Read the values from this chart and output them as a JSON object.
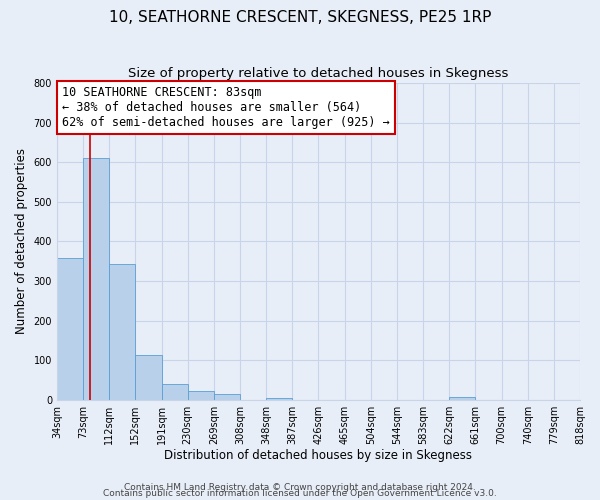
{
  "title": "10, SEATHORNE CRESCENT, SKEGNESS, PE25 1RP",
  "subtitle": "Size of property relative to detached houses in Skegness",
  "bar_values": [
    358,
    611,
    342,
    114,
    40,
    22,
    15,
    0,
    4,
    0,
    0,
    0,
    0,
    0,
    0,
    7,
    0,
    0,
    0,
    0
  ],
  "bin_edges_left": [
    34,
    73,
    112,
    151,
    190,
    229,
    268,
    307,
    346,
    385,
    424,
    463,
    502,
    541,
    580,
    619,
    658,
    697,
    736,
    775
  ],
  "bin_width": 39,
  "x_tick_labels": [
    "34sqm",
    "73sqm",
    "112sqm",
    "152sqm",
    "191sqm",
    "230sqm",
    "269sqm",
    "308sqm",
    "348sqm",
    "387sqm",
    "426sqm",
    "465sqm",
    "504sqm",
    "544sqm",
    "583sqm",
    "622sqm",
    "661sqm",
    "700sqm",
    "740sqm",
    "779sqm",
    "818sqm"
  ],
  "x_tick_positions": [
    34,
    73,
    112,
    151,
    190,
    229,
    268,
    307,
    346,
    385,
    424,
    463,
    502,
    541,
    580,
    619,
    658,
    697,
    736,
    775,
    814
  ],
  "ylabel": "Number of detached properties",
  "xlabel": "Distribution of detached houses by size in Skegness",
  "ylim": [
    0,
    800
  ],
  "xlim": [
    34,
    814
  ],
  "yticks": [
    0,
    100,
    200,
    300,
    400,
    500,
    600,
    700,
    800
  ],
  "bar_color": "#b8d0ea",
  "bar_edge_color": "#5a9fd4",
  "property_line_x": 83,
  "annotation_title": "10 SEATHORNE CRESCENT: 83sqm",
  "annotation_line1": "← 38% of detached houses are smaller (564)",
  "annotation_line2": "62% of semi-detached houses are larger (925) →",
  "annotation_box_color": "#ffffff",
  "annotation_box_edge_color": "#cc0000",
  "background_color": "#e8eef8",
  "grid_color": "#c8d4e8",
  "footer_line1": "Contains HM Land Registry data © Crown copyright and database right 2024.",
  "footer_line2": "Contains public sector information licensed under the Open Government Licence v3.0.",
  "title_fontsize": 11,
  "subtitle_fontsize": 9.5,
  "axis_label_fontsize": 8.5,
  "tick_label_fontsize": 7,
  "annotation_fontsize": 8.5,
  "footer_fontsize": 6.5
}
